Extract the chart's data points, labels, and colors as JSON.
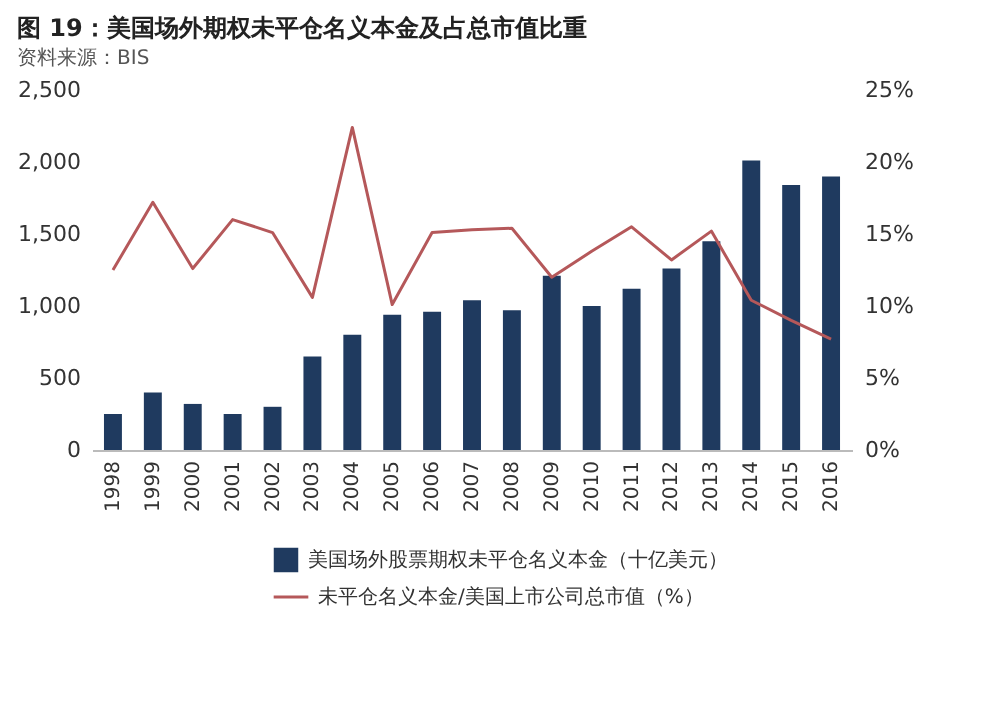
{
  "chart_data": {
    "type": "bar",
    "title": "图 19：美国场外期权未平仓名义本金及占总市值比重",
    "categories": [
      "1998",
      "1999",
      "2000",
      "2001",
      "2002",
      "2003",
      "2004",
      "2005",
      "2006",
      "2007",
      "2008",
      "2009",
      "2010",
      "2011",
      "2012",
      "2013",
      "2014",
      "2015",
      "2016"
    ],
    "series": [
      {
        "name": "美国场外股票期权未平仓名义本金（十亿美元）",
        "color": "#1f3a5f",
        "values": [
          250,
          400,
          320,
          250,
          300,
          650,
          800,
          940,
          960,
          1040,
          970,
          1210,
          1000,
          1120,
          1260,
          1450,
          2010,
          1840,
          1900
        ]
      },
      {
        "name": "未平仓名义本金/美国上市公司总市值（%）",
        "type": "line",
        "axis": "y2",
        "color": "#b5585a",
        "values": [
          12.5,
          17.2,
          12.6,
          16.0,
          15.1,
          10.6,
          22.4,
          10.1,
          15.1,
          15.3,
          15.4,
          12.0,
          13.8,
          15.5,
          13.2,
          15.2,
          10.4,
          9.0,
          7.7
        ]
      }
    ],
    "ylim": [
      0,
      2500
    ],
    "yticks": [
      {
        "value": 0,
        "label": "0"
      },
      {
        "value": 500,
        "label": "500"
      },
      {
        "value": 1000,
        "label": "1,000"
      },
      {
        "value": 1500,
        "label": "1,500"
      },
      {
        "value": 2000,
        "label": "2,000"
      },
      {
        "value": 2500,
        "label": "2,500"
      }
    ],
    "y2lim": [
      0,
      25
    ],
    "y2ticks": [
      {
        "value": 0,
        "label": "0%"
      },
      {
        "value": 5,
        "label": "5%"
      },
      {
        "value": 10,
        "label": "10%"
      },
      {
        "value": 15,
        "label": "15%"
      },
      {
        "value": 20,
        "label": "20%"
      },
      {
        "value": 25,
        "label": "25%"
      }
    ],
    "legend": "bottom",
    "grid": false,
    "annotations": [
      "资料来源：BIS"
    ]
  }
}
